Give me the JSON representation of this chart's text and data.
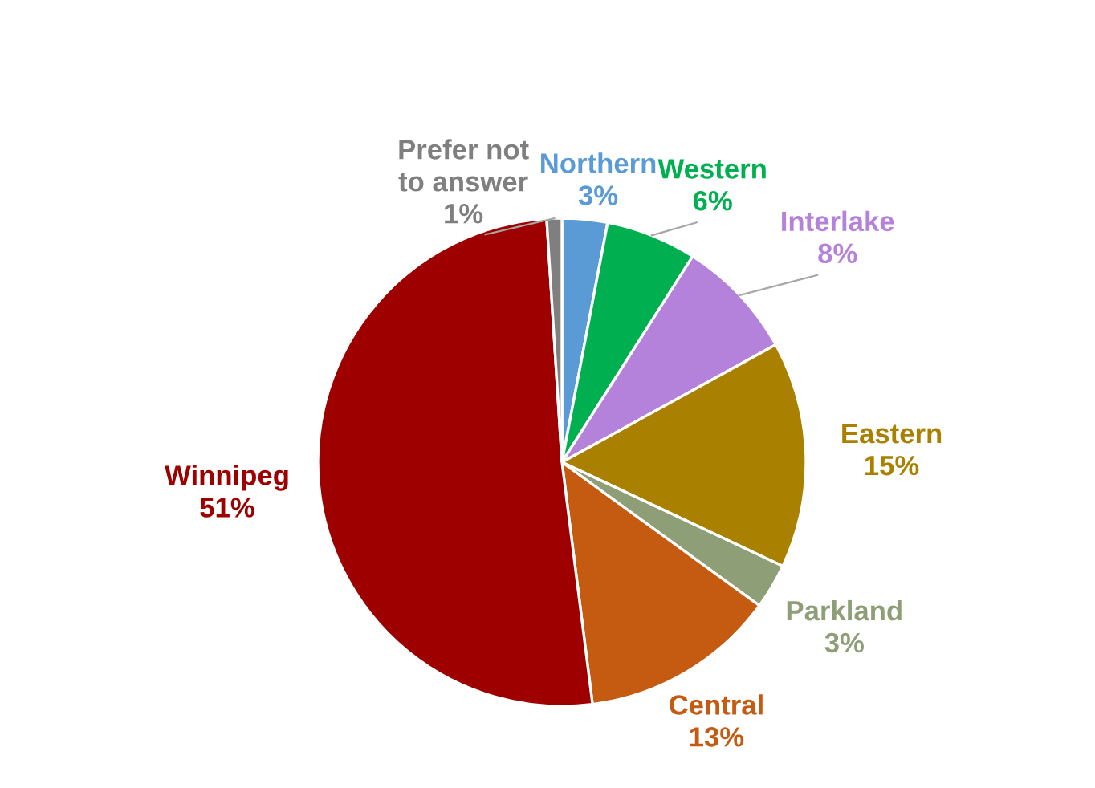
{
  "chart_data": {
    "type": "pie",
    "categories": [
      "Northern",
      "Western",
      "Interlake",
      "Eastern",
      "Parkland",
      "Central",
      "Winnipeg",
      "Prefer not to answer"
    ],
    "values": [
      3,
      6,
      8,
      15,
      3,
      13,
      51,
      1
    ],
    "colors": [
      "#5b9bd5",
      "#00b050",
      "#b482da",
      "#a98000",
      "#8e9f78",
      "#c55a11",
      "#9e0000",
      "#7f7f7f"
    ],
    "value_labels": [
      "3%",
      "6%",
      "8%",
      "15%",
      "3%",
      "13%",
      "51%",
      "1%"
    ],
    "legend": false
  }
}
